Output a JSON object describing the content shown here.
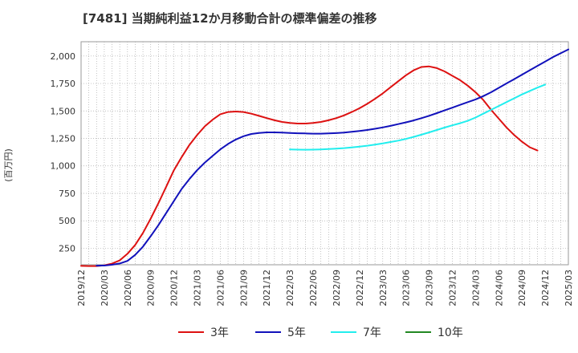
{
  "chart_data": {
    "type": "line",
    "title": "[7481]  当期純利益12か月移動合計の標準偏差の推移",
    "ylabel": "(百万円)",
    "xlabel": "",
    "ylim": [
      100,
      2130
    ],
    "y_ticks": [
      250,
      500,
      750,
      1000,
      1250,
      1500,
      1750,
      2000
    ],
    "y_tick_labels": [
      "250",
      "500",
      "750",
      "1,000",
      "1,250",
      "1,500",
      "1,750",
      "2,000"
    ],
    "x_ticks": [
      "2019/12",
      "2020/03",
      "2020/06",
      "2020/09",
      "2020/12",
      "2021/03",
      "2021/06",
      "2021/09",
      "2021/12",
      "2022/03",
      "2022/06",
      "2022/09",
      "2022/12",
      "2023/03",
      "2023/06",
      "2023/09",
      "2023/12",
      "2024/03",
      "2024/06",
      "2024/09",
      "2024/12",
      "2025/03"
    ],
    "grid": true,
    "legend_position": "bottom",
    "series": [
      {
        "name": "3年",
        "color": "#dd1111",
        "start_index": 0,
        "values": [
          90,
          88,
          88,
          95,
          110,
          140,
          200,
          280,
          390,
          520,
          660,
          810,
          960,
          1080,
          1190,
          1280,
          1360,
          1420,
          1470,
          1490,
          1495,
          1490,
          1475,
          1455,
          1435,
          1415,
          1400,
          1390,
          1385,
          1385,
          1390,
          1400,
          1415,
          1435,
          1460,
          1490,
          1525,
          1565,
          1610,
          1660,
          1715,
          1770,
          1825,
          1870,
          1900,
          1905,
          1890,
          1860,
          1820,
          1780,
          1730,
          1670,
          1600,
          1510,
          1430,
          1350,
          1280,
          1220,
          1170,
          1140
        ]
      },
      {
        "name": "5年",
        "color": "#1111bb",
        "start_index": 2,
        "values": [
          92,
          93,
          100,
          112,
          135,
          190,
          265,
          360,
          460,
          570,
          680,
          790,
          880,
          960,
          1030,
          1090,
          1150,
          1200,
          1240,
          1270,
          1290,
          1300,
          1305,
          1305,
          1303,
          1300,
          1297,
          1295,
          1293,
          1293,
          1295,
          1298,
          1303,
          1310,
          1318,
          1327,
          1338,
          1350,
          1364,
          1380,
          1396,
          1414,
          1434,
          1456,
          1480,
          1505,
          1530,
          1555,
          1580,
          1605,
          1635,
          1670,
          1710,
          1750,
          1790,
          1830,
          1870,
          1910,
          1950,
          1990,
          2025,
          2060
        ]
      },
      {
        "name": "7年",
        "color": "#22eeee",
        "start_index": 27,
        "values": [
          1150,
          1148,
          1147,
          1148,
          1150,
          1153,
          1157,
          1162,
          1168,
          1175,
          1184,
          1194,
          1205,
          1217,
          1230,
          1246,
          1264,
          1284,
          1305,
          1327,
          1349,
          1369,
          1388,
          1410,
          1440,
          1475,
          1510,
          1545,
          1580,
          1615,
          1650,
          1682,
          1712,
          1740
        ]
      },
      {
        "name": "10年",
        "color": "#228822",
        "start_index": 0,
        "values": []
      }
    ]
  }
}
